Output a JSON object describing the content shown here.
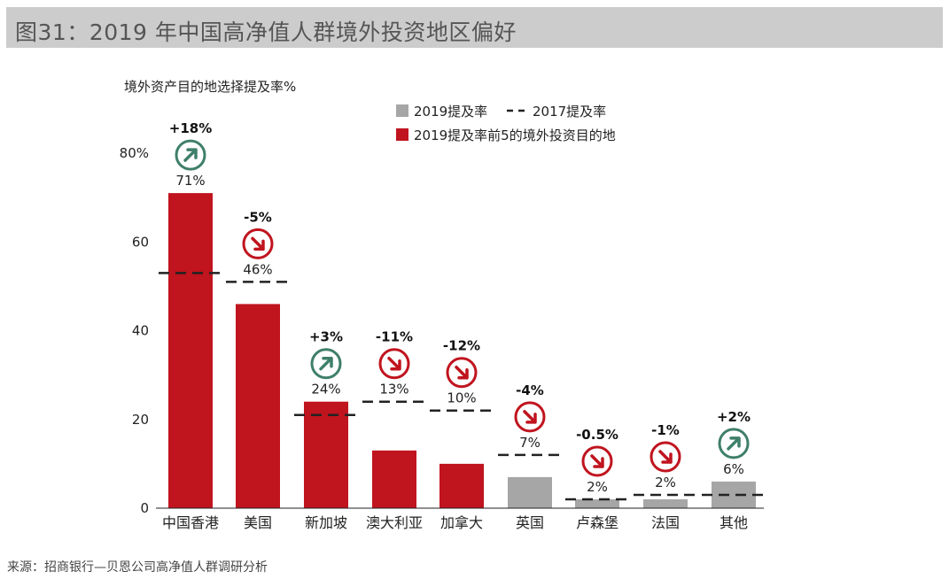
{
  "page": {
    "title": "图31：2019 年中国高净值人群境外投资地区偏好",
    "source": "来源：招商银行—贝恩公司高净值人群调研分析"
  },
  "chart_data": {
    "type": "bar",
    "ylabel": "境外资产目的地选择提及率%",
    "ylim": [
      0,
      80
    ],
    "yticks": [
      0,
      20,
      40,
      60,
      80
    ],
    "ytick_labels": [
      "0",
      "20",
      "40",
      "60",
      "80%"
    ],
    "categories": [
      "中国香港",
      "美国",
      "新加坡",
      "澳大利亚",
      "加拿大",
      "英国",
      "卢森堡",
      "法国",
      "其他"
    ],
    "series": [
      {
        "name": "2019提及率",
        "values": [
          71,
          46,
          24,
          13,
          10,
          7,
          2,
          2,
          6
        ],
        "value_labels": [
          "71%",
          "46%",
          "24%",
          "13%",
          "10%",
          "7%",
          "2%",
          "2%",
          "6%"
        ]
      },
      {
        "name": "2017提及率",
        "values": [
          53,
          51,
          21,
          24,
          22,
          12,
          2,
          3,
          3
        ]
      }
    ],
    "top5": [
      true,
      true,
      true,
      true,
      true,
      false,
      false,
      false,
      false
    ],
    "change_labels": [
      "+18%",
      "-5%",
      "+3%",
      "-11%",
      "-12%",
      "-4%",
      "-0.5%",
      "-1%",
      "+2%"
    ],
    "change_direction": [
      "up",
      "down",
      "up",
      "down",
      "down",
      "down",
      "down",
      "down",
      "up"
    ],
    "legend": {
      "placement": "top-right",
      "items": [
        {
          "label": "2019提及率",
          "type": "gray-square"
        },
        {
          "label": "2017提及率",
          "type": "dash"
        },
        {
          "label": "2019提及率前5的境外投资目的地",
          "type": "red-square"
        }
      ]
    },
    "colors": {
      "top5": "#c0141e",
      "other": "#a6a6a6",
      "up": "#3f7f6a",
      "down": "#c0141e",
      "dash": "#222222"
    }
  }
}
